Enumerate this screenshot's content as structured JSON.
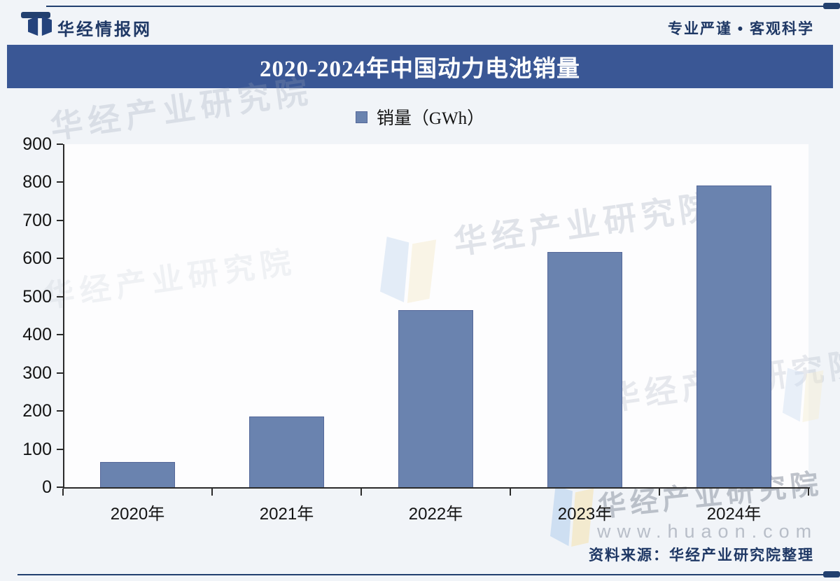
{
  "header": {
    "brand": "华经情报网",
    "slogan": "专业严谨 • 客观科学"
  },
  "title": "2020-2024年中国动力电池销量",
  "legend": {
    "label": "销量（GWh）"
  },
  "chart_data": {
    "type": "bar",
    "title": "2020-2024年中国动力电池销量",
    "categories": [
      "2020年",
      "2021年",
      "2022年",
      "2023年",
      "2024年"
    ],
    "values": [
      65.9,
      186,
      465.5,
      616.3,
      791.3
    ],
    "series_name": "销量（GWh）",
    "ylabel": "",
    "xlabel": "",
    "ylim": [
      0,
      900
    ],
    "yticks": [
      0,
      100,
      200,
      300,
      400,
      500,
      600,
      700,
      800,
      900
    ],
    "grid": false,
    "legend_position": "top-center",
    "bar_color": "#6a83af"
  },
  "watermarks": {
    "brand_text": "华经产业研究院",
    "url": "www.huaon.com"
  },
  "footer": {
    "source": "资料来源：华经产业研究院整理"
  },
  "colors": {
    "accent_navy": "#1f3865",
    "title_bar_bg": "#3a5795",
    "bar_fill": "#6a83af",
    "watermark_gray": "#9aa3b2"
  },
  "icons": {
    "brand_logo": "open-book-logo",
    "watermark_ribbon": "folded-ribbon"
  }
}
